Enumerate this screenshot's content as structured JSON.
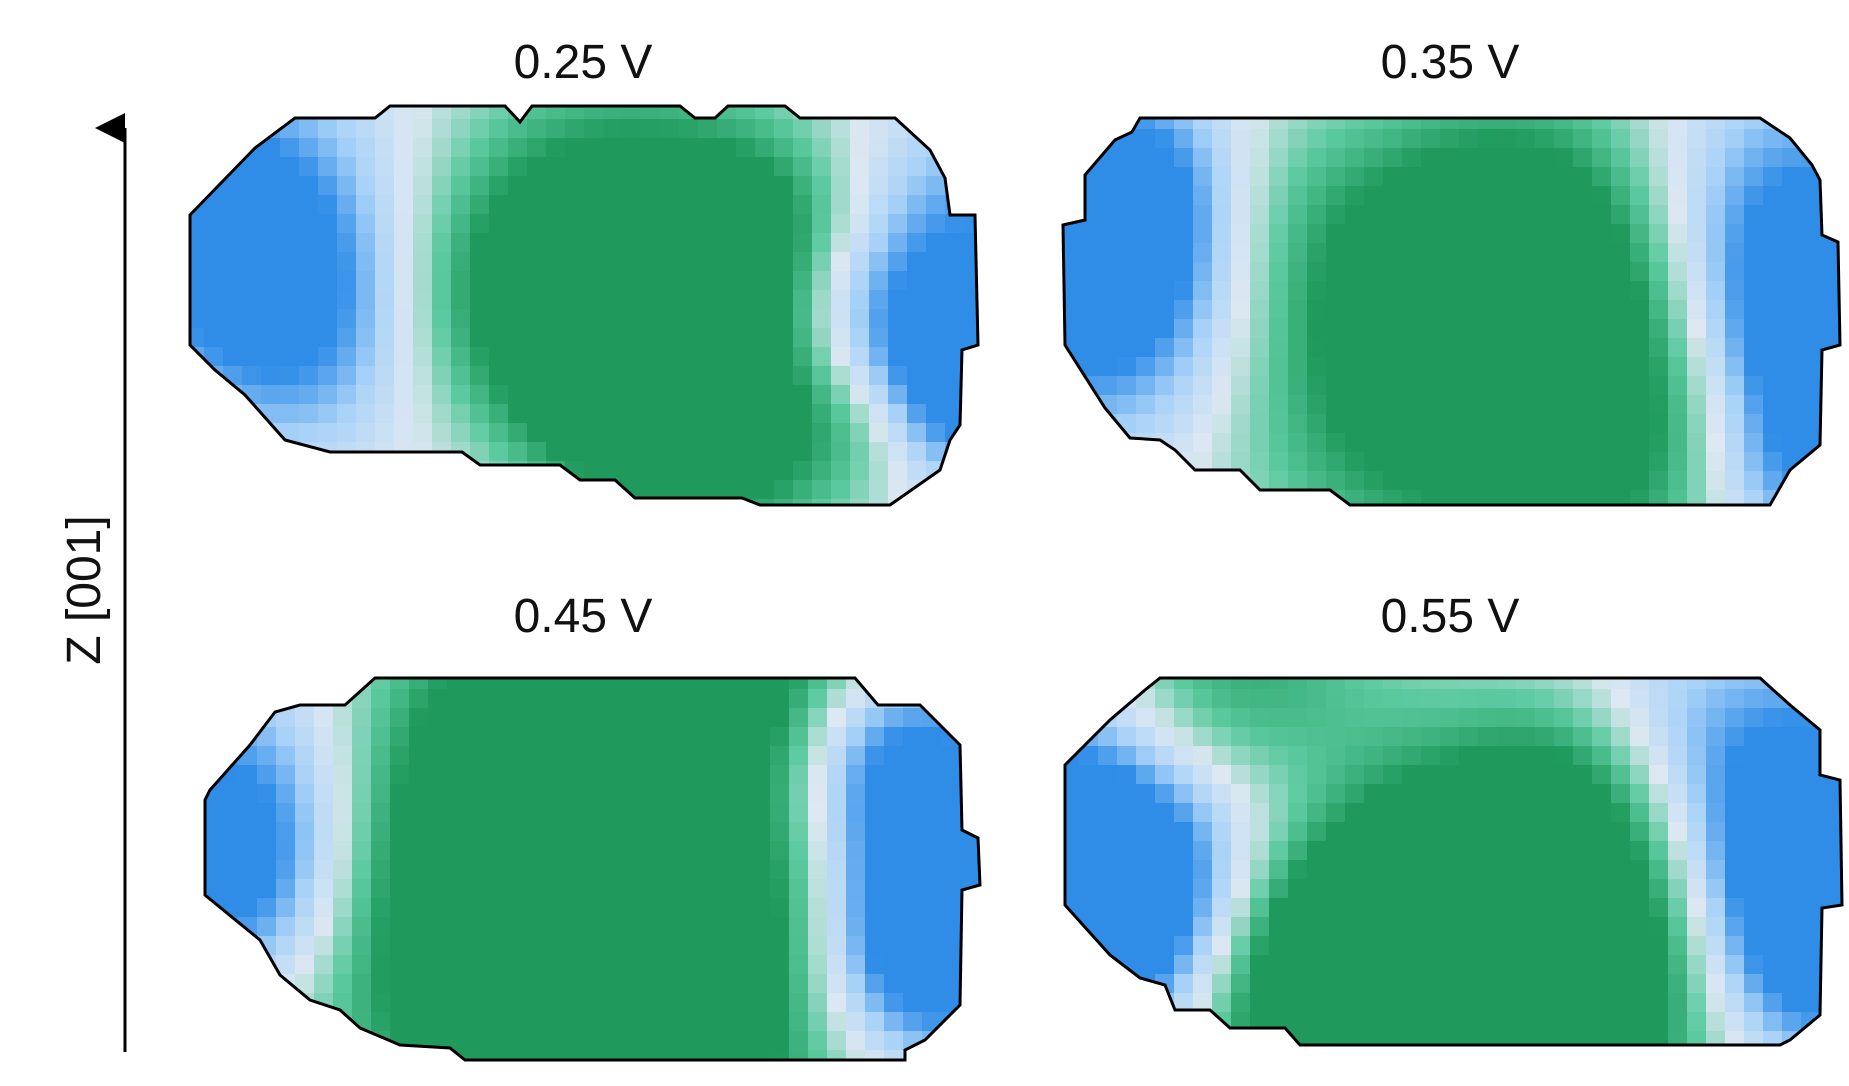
{
  "axis": {
    "label": "Z [001]"
  },
  "panels": [
    {
      "title": "0.25 V"
    },
    {
      "title": "0.35 V"
    },
    {
      "title": "0.45 V"
    },
    {
      "title": "0.55 V"
    }
  ],
  "colors": {
    "green_dark": "#1f9a5c",
    "green_mid": "#5ccaa0",
    "neutral": "#dde8f2",
    "blue_light": "#a8d2f8",
    "blue_dark": "#2f8de8"
  }
}
